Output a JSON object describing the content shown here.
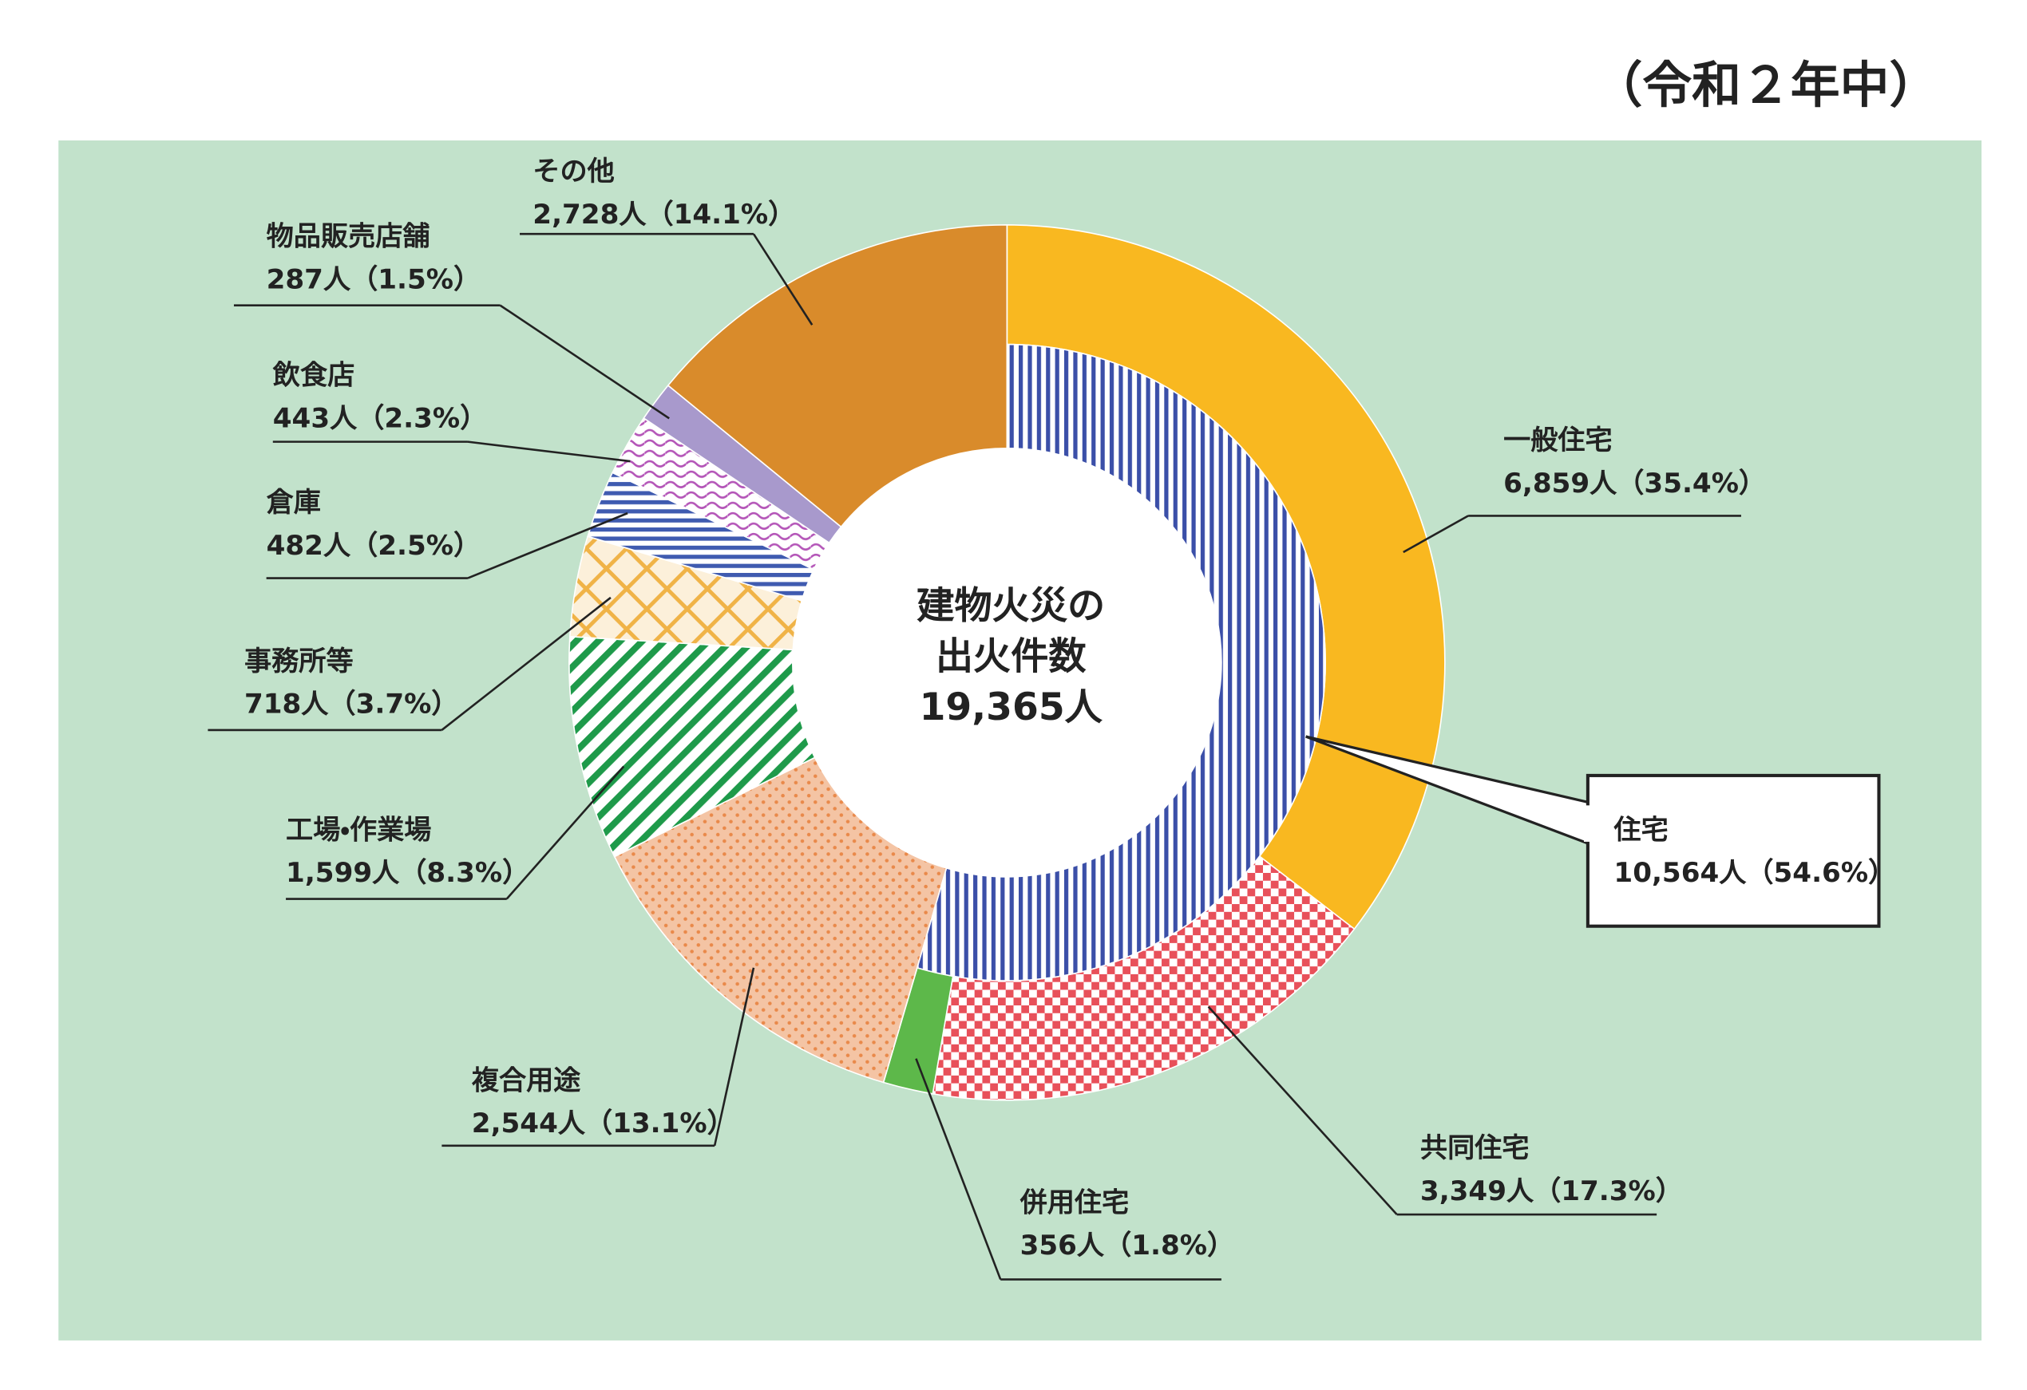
{
  "title": "（令和２年中）",
  "chart_data": {
    "type": "donut",
    "center_label": [
      "建物火災の",
      "出火件数",
      "19,365人"
    ],
    "categories": [
      "一般住宅",
      "共同住宅",
      "併用住宅",
      "複合用途",
      "工場・作業場",
      "事務所等",
      "倉庫",
      "飲食店",
      "物品販売店舗",
      "その他"
    ],
    "values": [
      6859,
      3349,
      356,
      2544,
      1599,
      718,
      482,
      443,
      287,
      2728
    ],
    "value_labels": [
      "6,859人（35.4%）",
      "3,349人（17.3%）",
      "356人（1.8%）",
      "2,544人（13.1%）",
      "1,599人（8.3%）",
      "718人（3.7%）",
      "482人（2.5%）",
      "443人（2.3%）",
      "287人（1.5%）",
      "2,728人（14.1%）"
    ],
    "colors": [
      "#f9b820",
      "#e8505a",
      "#5db84a",
      "#e9894a",
      "#1e9a4a",
      "#f0b347",
      "#3f5bb0",
      "#b455b8",
      "#a899cc",
      "#d98b2b"
    ],
    "patterns": [
      "solid",
      "check",
      "solid",
      "dots",
      "diagonal",
      "crosshatch",
      "hstripes",
      "wave",
      "solid",
      "solid"
    ],
    "inner": {
      "categories": [
        "住宅"
      ],
      "values": [
        10564
      ],
      "value_labels": [
        "10,564人（54.6%）"
      ],
      "color": "#3b4fa8",
      "pattern": "vstripes"
    }
  }
}
